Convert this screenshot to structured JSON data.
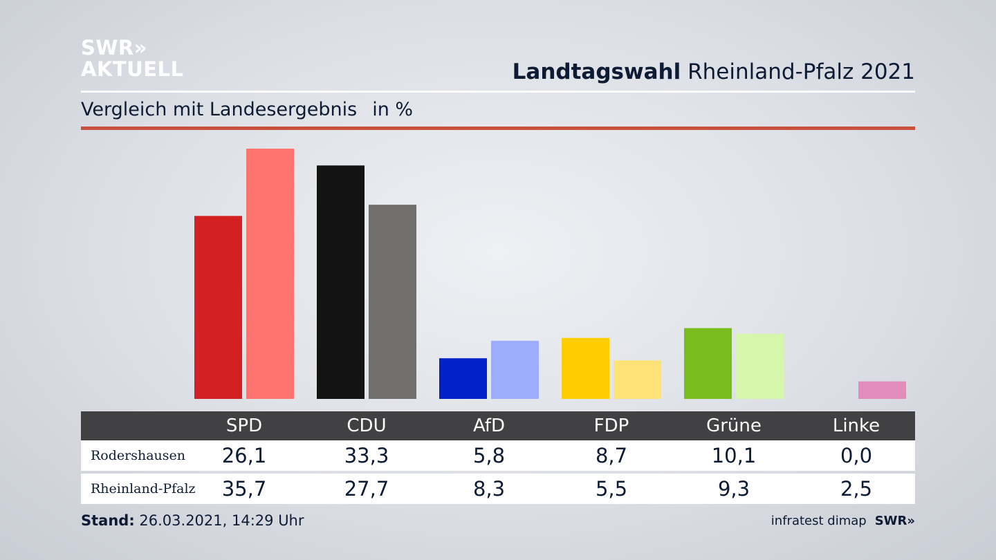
{
  "header": {
    "logo_line1": "SWR",
    "logo_arrows": "»",
    "logo_line2": "AKTUELL",
    "title_bold": "Landtagswahl",
    "title_rest": "Rheinland-Pfalz 2021",
    "subtitle": "Vergleich mit Landesergebnis",
    "unit": "in %"
  },
  "colors": {
    "accent_rule": "#c9503a",
    "series_local": [
      "#d42020",
      "#131313",
      "#0022c8",
      "#ffcc00",
      "#78bc1e",
      "#e28cbb"
    ],
    "series_state": [
      "#ff746f",
      "#706f6d",
      "#9eacfd",
      "#fde278",
      "#d6f7ab",
      "#e28cbb"
    ]
  },
  "chart_data": {
    "type": "bar",
    "categories": [
      "SPD",
      "CDU",
      "AfD",
      "FDP",
      "Grüne",
      "Linke"
    ],
    "series": [
      {
        "name": "Rodershausen",
        "values": [
          26.1,
          33.3,
          5.8,
          8.7,
          10.1,
          0.0
        ]
      },
      {
        "name": "Rheinland-Pfalz",
        "values": [
          35.7,
          27.7,
          8.3,
          5.5,
          9.3,
          2.5
        ]
      }
    ],
    "display_values": {
      "Rodershausen": [
        "26,1",
        "33,3",
        "5,8",
        "8,7",
        "10,1",
        "0,0"
      ],
      "Rheinland-Pfalz": [
        "35,7",
        "27,7",
        "8,3",
        "5,5",
        "9,3",
        "2,5"
      ]
    },
    "ylim": [
      0,
      36
    ],
    "grid": false,
    "legend": "table-below"
  },
  "footer": {
    "stand_label": "Stand:",
    "stand_value": "26.03.2021, 14:29 Uhr",
    "source": "infratest dimap",
    "brand": "SWR»"
  }
}
